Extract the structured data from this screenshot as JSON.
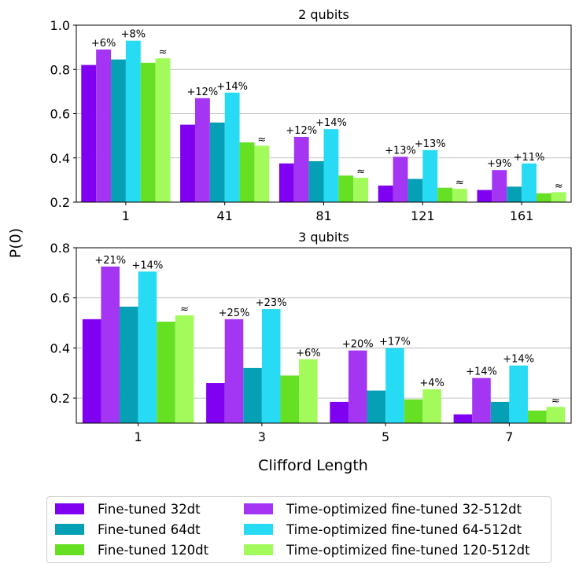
{
  "chart_data": {
    "type": "bar",
    "ylabel": "P(0)",
    "xlabel": "Clifford Length",
    "series_meta": [
      {
        "name": "Fine-tuned 32dt",
        "color": "#8000f2"
      },
      {
        "name": "Time-optimized fine-tuned 32-512dt",
        "color": "#a435f2"
      },
      {
        "name": "Fine-tuned 64dt",
        "color": "#05a0b5"
      },
      {
        "name": "Time-optimized fine-tuned 64-512dt",
        "color": "#28dbf5"
      },
      {
        "name": "Fine-tuned 120dt",
        "color": "#66e022"
      },
      {
        "name": "Time-optimized fine-tuned 120-512dt",
        "color": "#a2fb5b"
      }
    ],
    "legend": [
      "Fine-tuned 32dt",
      "Fine-tuned 64dt",
      "Fine-tuned 120dt",
      "Time-optimized fine-tuned 32-512dt",
      "Time-optimized fine-tuned 64-512dt",
      "Time-optimized fine-tuned 120-512dt"
    ],
    "panels": [
      {
        "title": "2 qubits",
        "categories": [
          "1",
          "41",
          "81",
          "121",
          "161"
        ],
        "ylim": [
          0.2,
          1.0
        ],
        "yticks": [
          0.2,
          0.4,
          0.6,
          0.8,
          1.0
        ],
        "ytick_labels": [
          "0.2",
          "0.4",
          "0.6",
          "0.8",
          "1.0"
        ],
        "series": [
          {
            "name": "Fine-tuned 32dt",
            "values": [
              0.82,
              0.55,
              0.375,
              0.275,
              0.255
            ]
          },
          {
            "name": "Time-optimized fine-tuned 32-512dt",
            "values": [
              0.89,
              0.67,
              0.495,
              0.405,
              0.345
            ]
          },
          {
            "name": "Fine-tuned 64dt",
            "values": [
              0.845,
              0.56,
              0.385,
              0.305,
              0.27
            ]
          },
          {
            "name": "Time-optimized fine-tuned 64-512dt",
            "values": [
              0.93,
              0.695,
              0.53,
              0.435,
              0.375
            ]
          },
          {
            "name": "Fine-tuned 120dt",
            "values": [
              0.83,
              0.47,
              0.32,
              0.265,
              0.24
            ]
          },
          {
            "name": "Time-optimized fine-tuned 120-512dt",
            "values": [
              0.85,
              0.455,
              0.31,
              0.26,
              0.245
            ]
          }
        ],
        "annotations": [
          [
            "+6%",
            "+8%",
            "≈"
          ],
          [
            "+12%",
            "+14%",
            "≈"
          ],
          [
            "+12%",
            "+14%",
            "≈"
          ],
          [
            "+13%",
            "+13%",
            "≈"
          ],
          [
            "+9%",
            "+11%",
            "≈"
          ]
        ]
      },
      {
        "title": "3 qubits",
        "categories": [
          "1",
          "3",
          "5",
          "7"
        ],
        "ylim": [
          0.1,
          0.8
        ],
        "yticks": [
          0.2,
          0.4,
          0.6,
          0.8
        ],
        "ytick_labels": [
          "0.2",
          "0.4",
          "0.6",
          "0.8"
        ],
        "series": [
          {
            "name": "Fine-tuned 32dt",
            "values": [
              0.515,
              0.26,
              0.185,
              0.135
            ]
          },
          {
            "name": "Time-optimized fine-tuned 32-512dt",
            "values": [
              0.725,
              0.515,
              0.39,
              0.28
            ]
          },
          {
            "name": "Fine-tuned 64dt",
            "values": [
              0.565,
              0.32,
              0.23,
              0.185
            ]
          },
          {
            "name": "Time-optimized fine-tuned 64-512dt",
            "values": [
              0.705,
              0.555,
              0.4,
              0.33
            ]
          },
          {
            "name": "Fine-tuned 120dt",
            "values": [
              0.505,
              0.29,
              0.195,
              0.15
            ]
          },
          {
            "name": "Time-optimized fine-tuned 120-512dt",
            "values": [
              0.53,
              0.355,
              0.235,
              0.165
            ]
          }
        ],
        "annotations": [
          [
            "+21%",
            "+14%",
            "≈"
          ],
          [
            "+25%",
            "+23%",
            "+6%"
          ],
          [
            "+20%",
            "+17%",
            "+4%"
          ],
          [
            "+14%",
            "+14%",
            "≈"
          ]
        ]
      }
    ]
  }
}
